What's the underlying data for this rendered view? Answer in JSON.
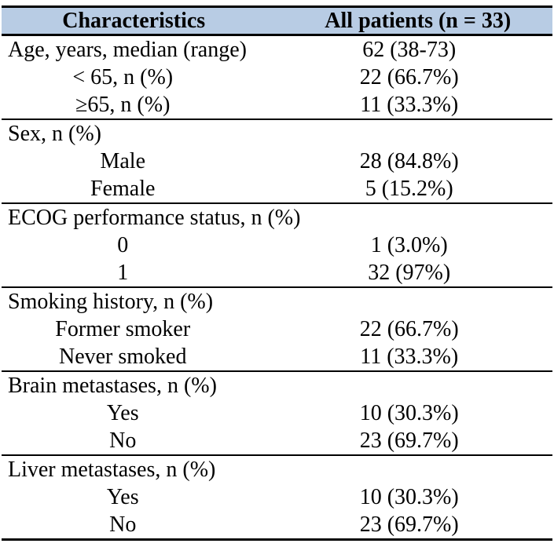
{
  "table": {
    "title_semantic": "Patient baseline characteristics table",
    "header_bg_color": "#b8cce4",
    "border_color": "#000000",
    "columns": [
      "Characteristics",
      "All patients (n = 33)"
    ],
    "sections": [
      {
        "rows": [
          {
            "label": "Age, years, median (range)",
            "value": "62 (38-73)",
            "align": "left"
          },
          {
            "label": "< 65, n (%)",
            "value": "22 (66.7%)",
            "align": "center"
          },
          {
            "label": "≥65, n (%)",
            "value": "11 (33.3%)",
            "align": "center"
          }
        ]
      },
      {
        "rows": [
          {
            "label": "Sex, n (%)",
            "value": "",
            "align": "left"
          },
          {
            "label": "Male",
            "value": "28 (84.8%)",
            "align": "center"
          },
          {
            "label": "Female",
            "value": "5 (15.2%)",
            "align": "center"
          }
        ]
      },
      {
        "rows": [
          {
            "label": "ECOG performance status, n (%)",
            "value": "",
            "align": "left"
          },
          {
            "label": "0",
            "value": "1 (3.0%)",
            "align": "center"
          },
          {
            "label": "1",
            "value": "32 (97%)",
            "align": "center"
          }
        ]
      },
      {
        "rows": [
          {
            "label": "Smoking history, n (%)",
            "value": "",
            "align": "left"
          },
          {
            "label": "Former smoker",
            "value": "22 (66.7%)",
            "align": "center"
          },
          {
            "label": "Never smoked",
            "value": "11 (33.3%)",
            "align": "center"
          }
        ]
      },
      {
        "rows": [
          {
            "label": "Brain metastases, n (%)",
            "value": "",
            "align": "left"
          },
          {
            "label": "Yes",
            "value": "10 (30.3%)",
            "align": "center"
          },
          {
            "label": "No",
            "value": "23 (69.7%)",
            "align": "center"
          }
        ]
      },
      {
        "rows": [
          {
            "label": "Liver metastases, n (%)",
            "value": "",
            "align": "left"
          },
          {
            "label": "Yes",
            "value": "10 (30.3%)",
            "align": "center"
          },
          {
            "label": "No",
            "value": "23 (69.7%)",
            "align": "center"
          }
        ]
      }
    ]
  }
}
